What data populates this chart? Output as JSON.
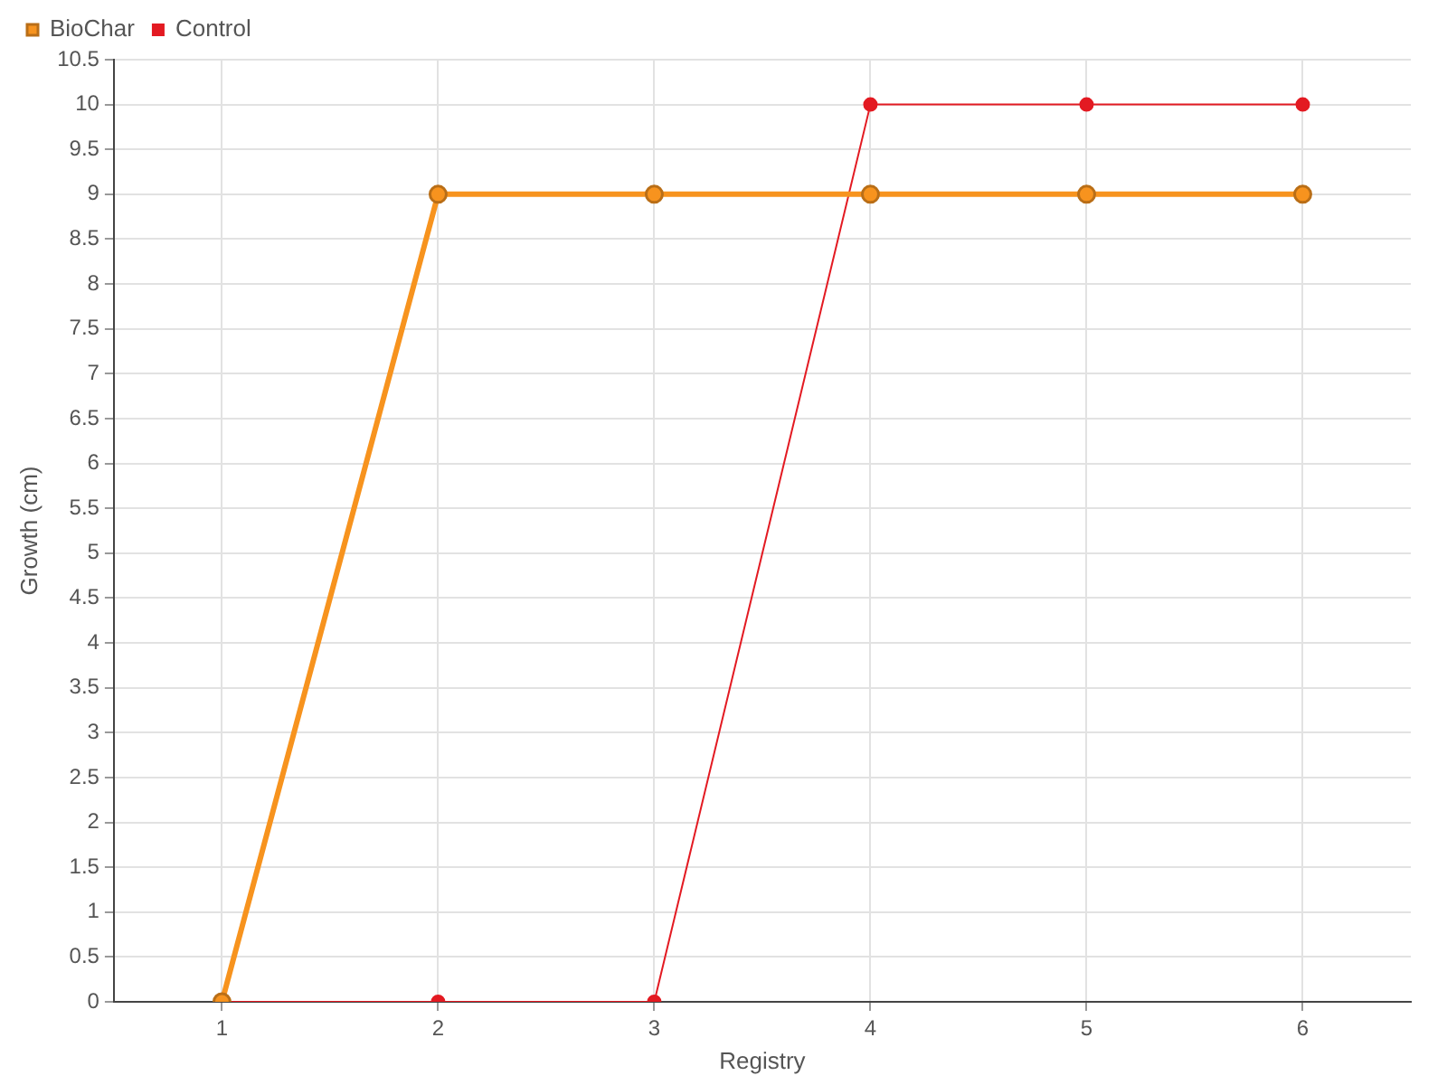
{
  "chart_data": {
    "type": "line",
    "xlabel": "Registry",
    "ylabel": "Growth (cm)",
    "x": [
      1,
      2,
      3,
      4,
      5,
      6
    ],
    "series": [
      {
        "name": "BioChar",
        "color": "#f7931e",
        "values": [
          0,
          9,
          9,
          9,
          9,
          9
        ]
      },
      {
        "name": "Control",
        "color": "#e31a22",
        "values": [
          0,
          0,
          0,
          10,
          10,
          10
        ]
      }
    ],
    "xlim": [
      0.5,
      6.5
    ],
    "xticks": [
      1,
      2,
      3,
      4,
      5,
      6
    ],
    "ylim": [
      0,
      10.5
    ],
    "yticks": [
      0,
      0.5,
      1,
      1.5,
      2,
      2.5,
      3,
      3.5,
      4,
      4.5,
      5,
      5.5,
      6,
      6.5,
      7,
      7.5,
      8,
      8.5,
      9,
      9.5,
      10,
      10.5
    ],
    "grid": true,
    "legend": "top left",
    "marker": "circle",
    "line_style": "solid"
  }
}
